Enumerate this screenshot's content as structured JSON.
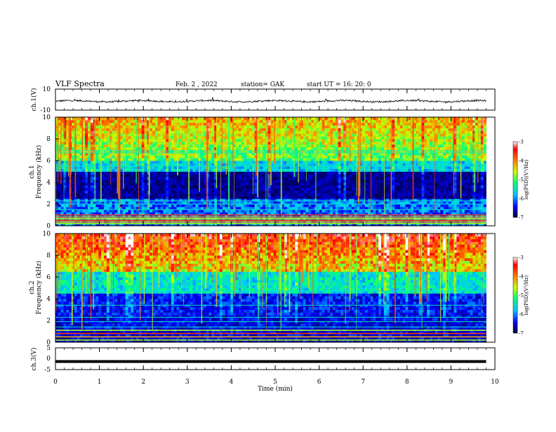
{
  "header": {
    "title": "VLF Spectra",
    "date": "Feb. 2 , 2022",
    "station": "station= GAK",
    "start": "start UT =  16: 20: 0"
  },
  "chart_data": [
    {
      "type": "line",
      "name": "ch1-waveform",
      "ylabel": "ch.1(V)",
      "ylim": [
        -10,
        10
      ],
      "yticks": [
        "10",
        "-10"
      ],
      "xlim": [
        0,
        10
      ],
      "baseline": -1.5,
      "noise_amplitude": 1.6
    },
    {
      "type": "heatmap",
      "name": "ch1-spectrogram",
      "ylabel_lines": [
        "ch.1",
        "Frequency (kHz)"
      ],
      "ylim": [
        0,
        10
      ],
      "yticks": [
        "0",
        "2",
        "4",
        "6",
        "8",
        "10"
      ],
      "xlim": [
        0,
        9.8
      ],
      "colorbar": {
        "label": "log(PSD)(V²/Hz)",
        "range": [
          -7,
          -3
        ],
        "ticks": [
          "-3",
          "-4",
          "-5",
          "-6",
          "-7"
        ],
        "colors": [
          "#000033",
          "#0000ff",
          "#00c8ff",
          "#00ff80",
          "#c8ff00",
          "#ff8000",
          "#ff0000",
          "#ffffff"
        ]
      },
      "bands_khz": [
        0.2,
        0.35,
        0.5,
        0.65,
        0.8,
        1.0,
        1.5,
        2.0,
        2.3,
        5.5,
        6.7,
        6.9
      ]
    },
    {
      "type": "heatmap",
      "name": "ch2-spectrogram",
      "ylabel_lines": [
        "ch.2",
        "Frequency (kHz)"
      ],
      "ylim": [
        0,
        10
      ],
      "yticks": [
        "0",
        "2",
        "4",
        "6",
        "8",
        "10"
      ],
      "xlim": [
        0,
        9.8
      ],
      "colorbar": {
        "label": "log(PSD)(V²/Hz)",
        "range": [
          -7,
          -3
        ],
        "ticks": [
          "-3",
          "-4",
          "-5",
          "-6",
          "-7"
        ],
        "colors": [
          "#000033",
          "#0000ff",
          "#00c8ff",
          "#00ff80",
          "#c8ff00",
          "#ff8000",
          "#ff0000",
          "#ffffff"
        ]
      },
      "bands_khz": [
        0.2,
        0.5,
        0.8,
        1.1,
        1.4,
        1.9,
        2.3,
        3.4,
        4.7
      ]
    },
    {
      "type": "line",
      "name": "ch3-waveform",
      "ylabel": "ch.3(V)",
      "ylim": [
        -5,
        5
      ],
      "yticks": [
        "5",
        "0",
        "-5"
      ],
      "xlim": [
        0,
        10
      ],
      "baseline": -1.3,
      "noise_amplitude": 0.05
    }
  ],
  "xaxis": {
    "label": "Time (min)",
    "ticks": [
      "0",
      "1",
      "2",
      "3",
      "4",
      "5",
      "6",
      "7",
      "8",
      "9",
      "10"
    ]
  }
}
